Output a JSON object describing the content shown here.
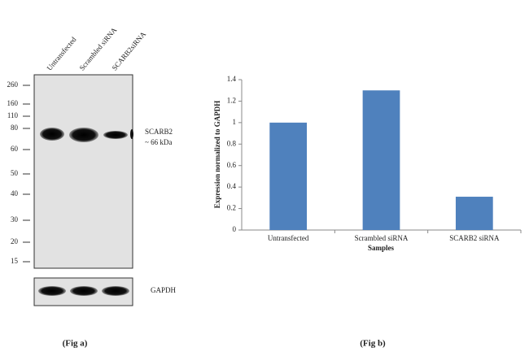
{
  "blot": {
    "lanes": [
      "Untransfected",
      "Scrambled siRNA",
      "SCARB2siRNA"
    ],
    "markers": [
      "260",
      "160",
      "110",
      "80",
      "60",
      "50",
      "40",
      "30",
      "20",
      "15"
    ],
    "target_label": "SCARB2",
    "target_size": "~ 66 kDa",
    "control_label": "GAPDH"
  },
  "captions": [
    "(Fig a)",
    "(Fig b)"
  ],
  "chart_data": {
    "type": "bar",
    "categories": [
      "Untransfected",
      "Scrambled siRNA",
      "SCARB2 siRNA"
    ],
    "values": [
      1,
      1.3,
      0.31
    ],
    "color": "#4f81bd",
    "ylabel": "Expression normalized to GAPDH",
    "xlabel": "Samples",
    "ylim": [
      0,
      1.4
    ],
    "yticks": [
      0,
      0.2,
      0.4,
      0.6,
      0.8,
      1,
      1.2,
      1.4
    ]
  }
}
